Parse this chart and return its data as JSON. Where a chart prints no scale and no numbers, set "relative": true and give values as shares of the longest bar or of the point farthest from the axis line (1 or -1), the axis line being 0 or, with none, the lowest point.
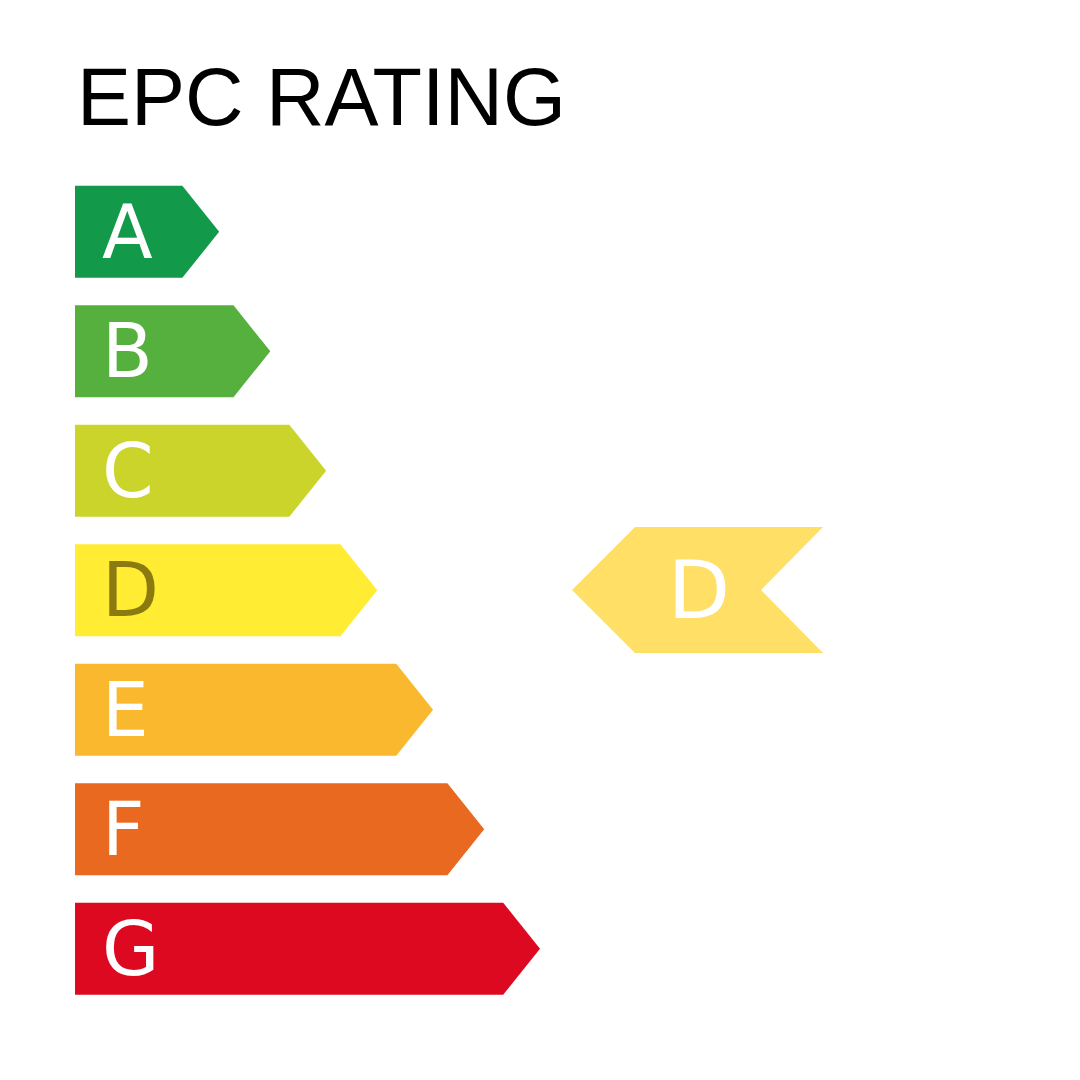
{
  "chart_data": {
    "type": "bar",
    "orientation": "horizontal",
    "relative": true,
    "title": "EPC RATING",
    "categories": [
      "A",
      "B",
      "C",
      "D",
      "E",
      "F",
      "G"
    ],
    "values": [
      0.31,
      0.42,
      0.54,
      0.65,
      0.77,
      0.88,
      1
    ],
    "colors": [
      "#12994a",
      "#56b03d",
      "#cad42a",
      "#ffec33",
      "#f9b82d",
      "#e8691f",
      "#dd0920"
    ],
    "annotations": [
      "D"
    ]
  }
}
